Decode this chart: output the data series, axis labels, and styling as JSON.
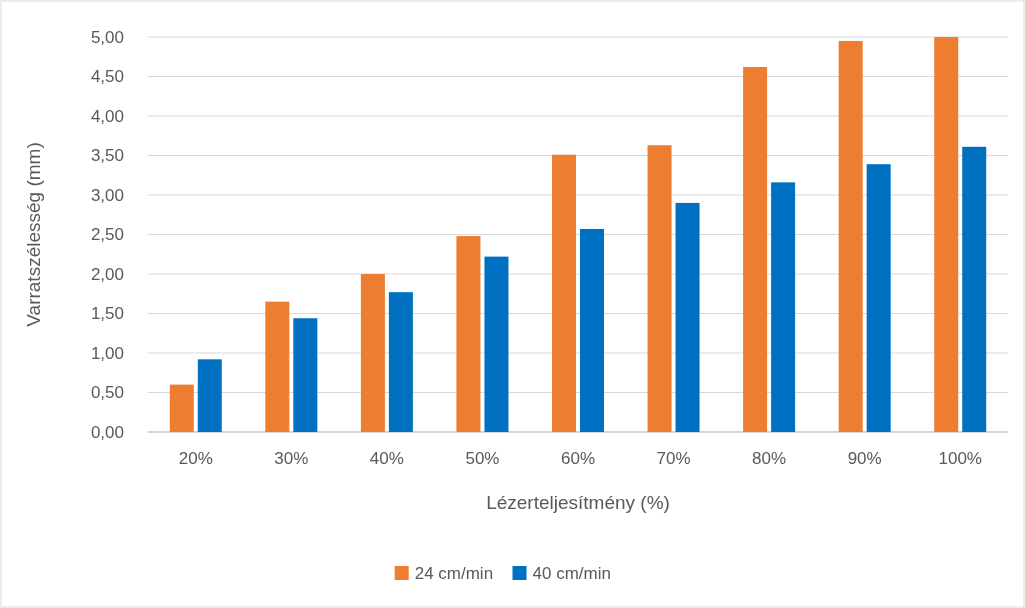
{
  "chart_data": {
    "type": "bar",
    "xlabel": "Lézerteljesítmény (%)",
    "ylabel": "Varratszélesség (mm)",
    "categories": [
      "20%",
      "30%",
      "40%",
      "50%",
      "60%",
      "70%",
      "80%",
      "90%",
      "100%"
    ],
    "series": [
      {
        "name": "24 cm/min",
        "color": "#ed7d31",
        "values": [
          0.6,
          1.65,
          2.0,
          2.48,
          3.51,
          3.63,
          4.62,
          4.95,
          5.0
        ]
      },
      {
        "name": "40 cm/min",
        "color": "#0070c0",
        "values": [
          0.92,
          1.44,
          1.77,
          2.22,
          2.57,
          2.9,
          3.16,
          3.39,
          3.61
        ]
      }
    ],
    "ylim": [
      0,
      5
    ],
    "yticks": [
      {
        "value": 0,
        "label": "0,00"
      },
      {
        "value": 0.5,
        "label": "0,50"
      },
      {
        "value": 1,
        "label": "1,00"
      },
      {
        "value": 1.5,
        "label": "1,50"
      },
      {
        "value": 2,
        "label": "2,00"
      },
      {
        "value": 2.5,
        "label": "2,50"
      },
      {
        "value": 3,
        "label": "3,00"
      },
      {
        "value": 3.5,
        "label": "3,50"
      },
      {
        "value": 4,
        "label": "4,00"
      },
      {
        "value": 4.5,
        "label": "4,50"
      },
      {
        "value": 5,
        "label": "5,00"
      }
    ],
    "grid": "y",
    "legend": "bottom"
  }
}
